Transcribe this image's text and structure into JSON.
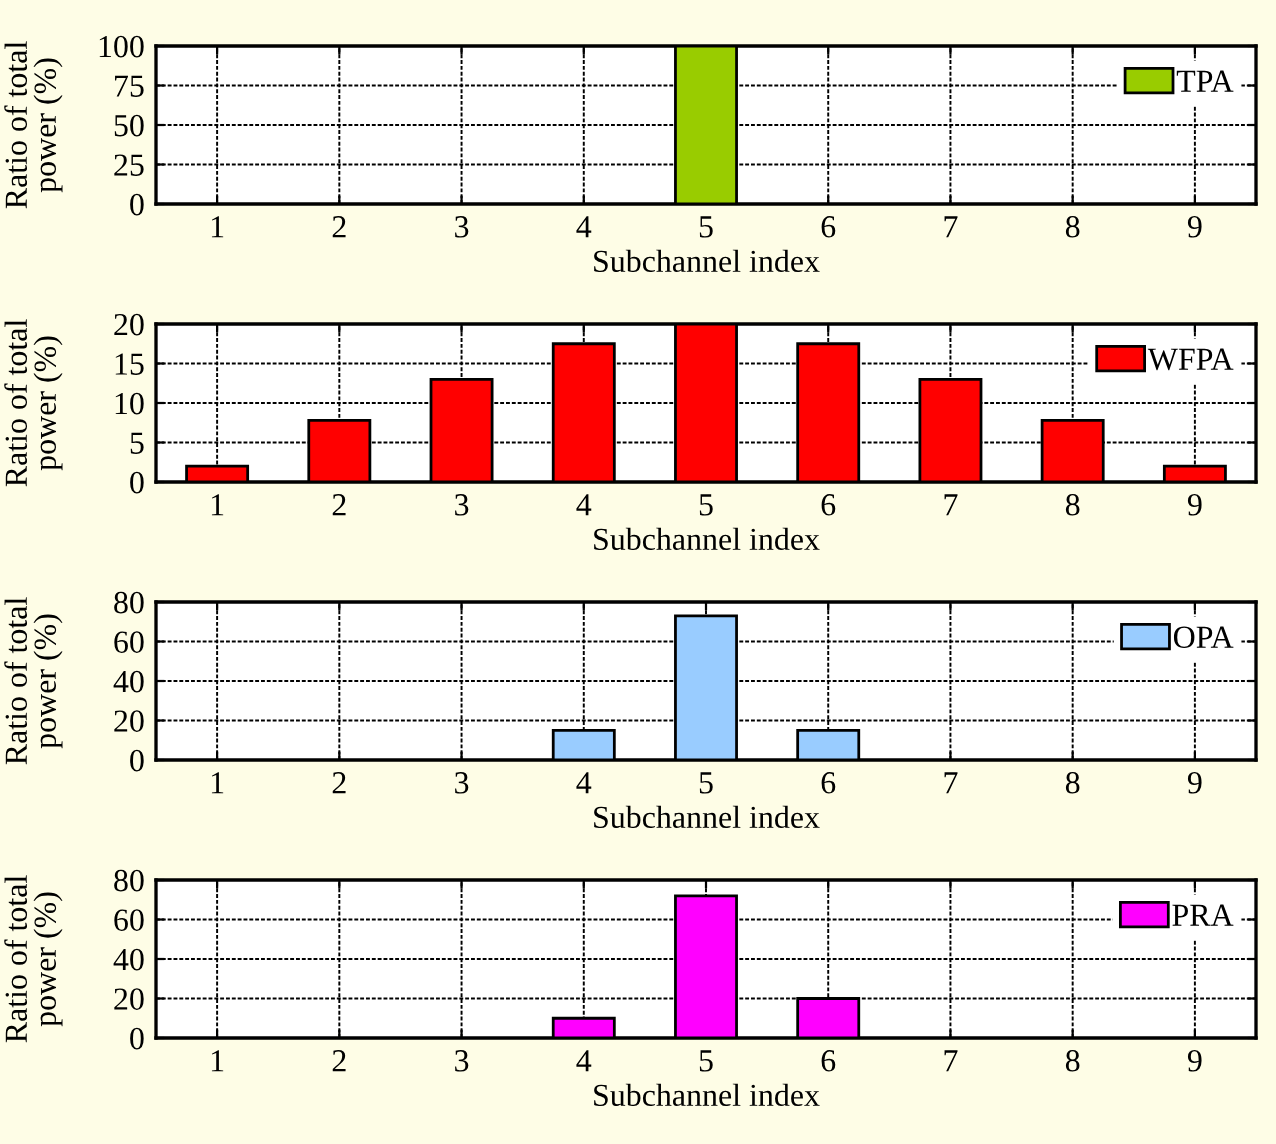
{
  "chart_data": [
    {
      "type": "bar",
      "xlabel": "Subchannel index",
      "ylabel": "Ratio of total\npower (%)",
      "categories": [
        "1",
        "2",
        "3",
        "4",
        "5",
        "6",
        "7",
        "8",
        "9"
      ],
      "ylim": [
        0,
        100
      ],
      "yticks": [
        0,
        25,
        50,
        75,
        100
      ],
      "grid": true,
      "legend": "top right",
      "series": [
        {
          "name": "TPA",
          "color": "#99cc00",
          "values": [
            0,
            0,
            0,
            0,
            100,
            0,
            0,
            0,
            0
          ]
        }
      ]
    },
    {
      "type": "bar",
      "xlabel": "Subchannel index",
      "ylabel": "Ratio of total\npower (%)",
      "categories": [
        "1",
        "2",
        "3",
        "4",
        "5",
        "6",
        "7",
        "8",
        "9"
      ],
      "ylim": [
        0,
        20
      ],
      "yticks": [
        0,
        5,
        10,
        15,
        20
      ],
      "grid": true,
      "legend": "top right",
      "series": [
        {
          "name": "WFPA",
          "color": "#ff0000",
          "values": [
            2,
            7.8,
            13,
            17.5,
            20,
            17.5,
            13,
            7.8,
            2
          ]
        }
      ]
    },
    {
      "type": "bar",
      "xlabel": "Subchannel index",
      "ylabel": "Ratio of total\npower (%)",
      "categories": [
        "1",
        "2",
        "3",
        "4",
        "5",
        "6",
        "7",
        "8",
        "9"
      ],
      "ylim": [
        0,
        80
      ],
      "yticks": [
        0,
        20,
        40,
        60,
        80
      ],
      "grid": true,
      "legend": "top right",
      "series": [
        {
          "name": "OPA",
          "color": "#99ccff",
          "values": [
            0,
            0,
            0,
            15,
            73,
            15,
            0,
            0,
            0
          ]
        }
      ]
    },
    {
      "type": "bar",
      "xlabel": "Subchannel index",
      "ylabel": "Ratio of total\npower (%)",
      "categories": [
        "1",
        "2",
        "3",
        "4",
        "5",
        "6",
        "7",
        "8",
        "9"
      ],
      "ylim": [
        0,
        80
      ],
      "yticks": [
        0,
        20,
        40,
        60,
        80
      ],
      "grid": true,
      "legend": "top right",
      "series": [
        {
          "name": "PRA",
          "color": "#ff00ff",
          "values": [
            0,
            0,
            0,
            10,
            72,
            20,
            0,
            0,
            0
          ]
        }
      ]
    }
  ]
}
